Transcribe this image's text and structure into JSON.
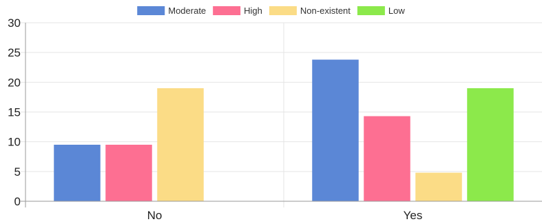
{
  "chart_data": {
    "type": "bar",
    "title": "",
    "xlabel": "",
    "ylabel": "",
    "categories": [
      "No",
      "Yes"
    ],
    "series": [
      {
        "name": "Moderate",
        "values": [
          9.5,
          23.8
        ],
        "color": "#5b87d6"
      },
      {
        "name": "High",
        "values": [
          9.5,
          14.3
        ],
        "color": "#fd6f92"
      },
      {
        "name": "Non-existent",
        "values": [
          19,
          4.8
        ],
        "color": "#fbdc86"
      },
      {
        "name": "Low",
        "values": [
          0,
          19
        ],
        "color": "#8ce94b"
      }
    ],
    "ylim": [
      0,
      30
    ],
    "yticks": [
      0,
      5,
      10,
      15,
      20,
      25,
      30
    ],
    "grid": true,
    "legend_position": "top-center"
  }
}
